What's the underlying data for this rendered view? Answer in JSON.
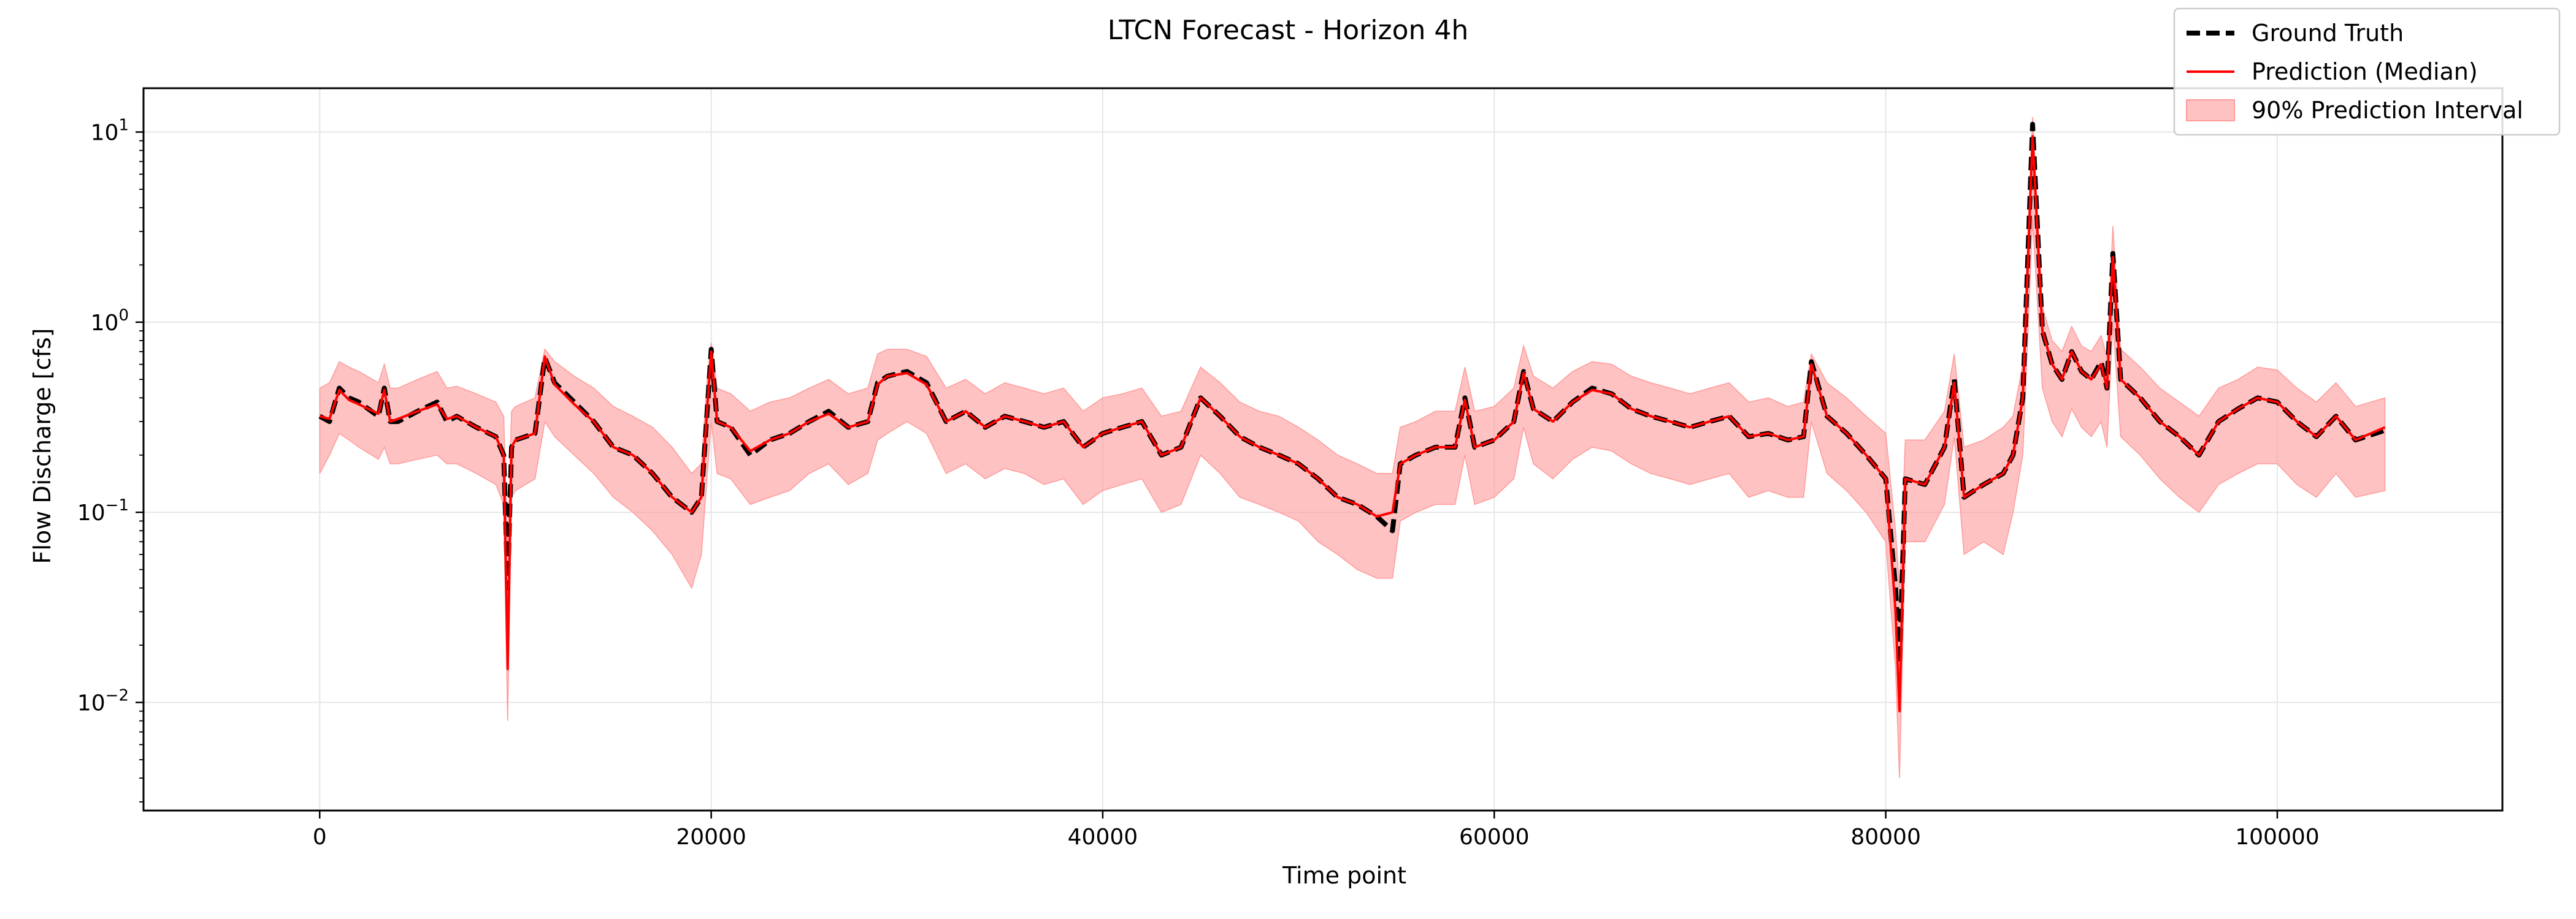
{
  "chart_data": {
    "type": "line",
    "title": "LTCN Forecast - Horizon 4h",
    "xlabel": "Time point",
    "ylabel": "Flow Discharge [cfs]",
    "xlim": [
      -9000,
      111500
    ],
    "ylim": [
      0.0027,
      17
    ],
    "yscale": "log",
    "grid": true,
    "legend_position": "top-right",
    "x_ticks": [
      {
        "value": 0,
        "label": "0"
      },
      {
        "value": 20000,
        "label": "20000"
      },
      {
        "value": 40000,
        "label": "40000"
      },
      {
        "value": 60000,
        "label": "60000"
      },
      {
        "value": 80000,
        "label": "80000"
      },
      {
        "value": 100000,
        "label": "100000"
      }
    ],
    "y_ticks": [
      {
        "value": 0.01,
        "base": "10",
        "exp": "−2"
      },
      {
        "value": 0.1,
        "base": "10",
        "exp": "−1"
      },
      {
        "value": 1,
        "base": "10",
        "exp": "0"
      },
      {
        "value": 10,
        "base": "10",
        "exp": "1"
      }
    ],
    "series": [
      {
        "name": "Ground Truth",
        "style": "dashed",
        "color": "#000000",
        "role": "truth"
      },
      {
        "name": "Prediction (Median)",
        "style": "solid",
        "color": "#ff0000",
        "role": "median"
      },
      {
        "name": "90% Prediction Interval",
        "style": "band",
        "color": "#ff9999",
        "role": "interval"
      }
    ],
    "x": [
      0,
      500,
      1000,
      1500,
      2000,
      3000,
      3300,
      3600,
      4000,
      5000,
      6000,
      6500,
      7000,
      8000,
      9000,
      9400,
      9600,
      9800,
      10000,
      11000,
      11500,
      12000,
      13000,
      14000,
      15000,
      16000,
      17000,
      18000,
      19000,
      19500,
      19800,
      20000,
      20300,
      21000,
      22000,
      23000,
      24000,
      25000,
      26000,
      27000,
      28000,
      28500,
      29000,
      30000,
      31000,
      32000,
      33000,
      34000,
      35000,
      36000,
      37000,
      38000,
      39000,
      40000,
      41000,
      42000,
      43000,
      44000,
      45000,
      46000,
      47000,
      48000,
      49000,
      50000,
      51000,
      52000,
      53000,
      54000,
      54800,
      55200,
      56000,
      57000,
      58000,
      58500,
      59000,
      60000,
      61000,
      61500,
      62000,
      63000,
      64000,
      65000,
      66000,
      67000,
      68000,
      69000,
      70000,
      71000,
      72000,
      73000,
      74000,
      75000,
      75800,
      76200,
      77000,
      78000,
      79000,
      80000,
      80500,
      80700,
      81000,
      82000,
      83000,
      83500,
      84000,
      85000,
      86000,
      86500,
      87000,
      87200,
      87500,
      88000,
      88500,
      89000,
      89500,
      90000,
      90500,
      91000,
      91300,
      91600,
      92000,
      93000,
      94000,
      95000,
      96000,
      97000,
      98000,
      99000,
      100000,
      101000,
      102000,
      103000,
      104000,
      105500
    ],
    "truth": [
      0.32,
      0.3,
      0.45,
      0.4,
      0.38,
      0.32,
      0.45,
      0.3,
      0.3,
      0.34,
      0.38,
      0.3,
      0.32,
      0.28,
      0.25,
      0.2,
      0.04,
      0.22,
      0.24,
      0.26,
      0.65,
      0.48,
      0.38,
      0.3,
      0.22,
      0.2,
      0.16,
      0.12,
      0.1,
      0.12,
      0.35,
      0.72,
      0.3,
      0.28,
      0.2,
      0.24,
      0.26,
      0.3,
      0.34,
      0.28,
      0.3,
      0.48,
      0.52,
      0.55,
      0.48,
      0.3,
      0.34,
      0.28,
      0.32,
      0.3,
      0.28,
      0.3,
      0.22,
      0.26,
      0.28,
      0.3,
      0.2,
      0.22,
      0.4,
      0.32,
      0.25,
      0.22,
      0.2,
      0.18,
      0.15,
      0.12,
      0.11,
      0.095,
      0.08,
      0.18,
      0.2,
      0.22,
      0.22,
      0.4,
      0.22,
      0.24,
      0.3,
      0.55,
      0.35,
      0.3,
      0.38,
      0.45,
      0.42,
      0.35,
      0.32,
      0.3,
      0.28,
      0.3,
      0.32,
      0.25,
      0.26,
      0.24,
      0.25,
      0.62,
      0.32,
      0.26,
      0.2,
      0.15,
      0.04,
      0.016,
      0.15,
      0.14,
      0.22,
      0.5,
      0.12,
      0.14,
      0.16,
      0.2,
      0.4,
      1.5,
      11,
      0.9,
      0.6,
      0.5,
      0.7,
      0.55,
      0.5,
      0.62,
      0.45,
      2.3,
      0.5,
      0.4,
      0.3,
      0.25,
      0.2,
      0.3,
      0.35,
      0.4,
      0.38,
      0.3,
      0.25,
      0.32,
      0.24,
      0.27
    ],
    "median": [
      0.32,
      0.31,
      0.44,
      0.39,
      0.37,
      0.33,
      0.44,
      0.3,
      0.31,
      0.34,
      0.37,
      0.31,
      0.32,
      0.28,
      0.25,
      0.2,
      0.015,
      0.22,
      0.24,
      0.26,
      0.66,
      0.47,
      0.37,
      0.3,
      0.22,
      0.2,
      0.16,
      0.12,
      0.1,
      0.12,
      0.36,
      0.7,
      0.3,
      0.28,
      0.21,
      0.24,
      0.26,
      0.3,
      0.33,
      0.28,
      0.3,
      0.47,
      0.52,
      0.54,
      0.47,
      0.3,
      0.34,
      0.28,
      0.32,
      0.3,
      0.28,
      0.3,
      0.22,
      0.26,
      0.28,
      0.3,
      0.2,
      0.22,
      0.4,
      0.32,
      0.25,
      0.22,
      0.2,
      0.18,
      0.15,
      0.12,
      0.11,
      0.095,
      0.1,
      0.18,
      0.2,
      0.22,
      0.22,
      0.39,
      0.22,
      0.24,
      0.3,
      0.54,
      0.35,
      0.3,
      0.38,
      0.44,
      0.42,
      0.35,
      0.32,
      0.3,
      0.28,
      0.3,
      0.32,
      0.25,
      0.26,
      0.24,
      0.25,
      0.6,
      0.32,
      0.26,
      0.2,
      0.15,
      0.03,
      0.009,
      0.15,
      0.14,
      0.22,
      0.48,
      0.12,
      0.14,
      0.16,
      0.2,
      0.4,
      1.4,
      9.5,
      0.9,
      0.6,
      0.5,
      0.7,
      0.55,
      0.5,
      0.6,
      0.45,
      2.2,
      0.5,
      0.4,
      0.3,
      0.25,
      0.2,
      0.3,
      0.35,
      0.4,
      0.38,
      0.3,
      0.25,
      0.32,
      0.24,
      0.28
    ],
    "lower": [
      0.16,
      0.2,
      0.26,
      0.24,
      0.22,
      0.19,
      0.22,
      0.18,
      0.18,
      0.19,
      0.2,
      0.18,
      0.18,
      0.16,
      0.14,
      0.11,
      0.008,
      0.12,
      0.13,
      0.15,
      0.3,
      0.25,
      0.2,
      0.16,
      0.12,
      0.1,
      0.08,
      0.06,
      0.04,
      0.06,
      0.16,
      0.3,
      0.16,
      0.15,
      0.11,
      0.12,
      0.13,
      0.16,
      0.18,
      0.14,
      0.16,
      0.24,
      0.26,
      0.3,
      0.26,
      0.16,
      0.18,
      0.15,
      0.17,
      0.16,
      0.14,
      0.15,
      0.11,
      0.13,
      0.14,
      0.15,
      0.1,
      0.11,
      0.2,
      0.16,
      0.12,
      0.11,
      0.1,
      0.09,
      0.07,
      0.06,
      0.05,
      0.045,
      0.045,
      0.09,
      0.1,
      0.11,
      0.11,
      0.2,
      0.11,
      0.12,
      0.15,
      0.28,
      0.18,
      0.15,
      0.19,
      0.22,
      0.21,
      0.18,
      0.16,
      0.15,
      0.14,
      0.15,
      0.16,
      0.12,
      0.13,
      0.12,
      0.12,
      0.3,
      0.16,
      0.13,
      0.1,
      0.07,
      0.015,
      0.004,
      0.07,
      0.07,
      0.11,
      0.25,
      0.06,
      0.07,
      0.06,
      0.1,
      0.2,
      0.6,
      3.5,
      0.45,
      0.3,
      0.25,
      0.35,
      0.28,
      0.25,
      0.3,
      0.22,
      1.0,
      0.25,
      0.2,
      0.15,
      0.12,
      0.1,
      0.14,
      0.16,
      0.18,
      0.18,
      0.14,
      0.12,
      0.16,
      0.12,
      0.13
    ],
    "upper": [
      0.45,
      0.48,
      0.62,
      0.58,
      0.55,
      0.48,
      0.6,
      0.45,
      0.45,
      0.5,
      0.55,
      0.45,
      0.46,
      0.42,
      0.38,
      0.32,
      0.06,
      0.34,
      0.36,
      0.4,
      0.72,
      0.62,
      0.52,
      0.45,
      0.36,
      0.32,
      0.28,
      0.22,
      0.16,
      0.18,
      0.5,
      0.78,
      0.45,
      0.42,
      0.34,
      0.38,
      0.4,
      0.45,
      0.5,
      0.42,
      0.45,
      0.68,
      0.72,
      0.72,
      0.66,
      0.45,
      0.5,
      0.42,
      0.48,
      0.45,
      0.42,
      0.45,
      0.34,
      0.4,
      0.42,
      0.45,
      0.32,
      0.34,
      0.58,
      0.48,
      0.38,
      0.34,
      0.32,
      0.28,
      0.24,
      0.2,
      0.18,
      0.16,
      0.16,
      0.28,
      0.3,
      0.34,
      0.34,
      0.58,
      0.34,
      0.36,
      0.45,
      0.75,
      0.52,
      0.45,
      0.55,
      0.62,
      0.6,
      0.52,
      0.48,
      0.45,
      0.42,
      0.45,
      0.48,
      0.38,
      0.4,
      0.36,
      0.38,
      0.68,
      0.48,
      0.4,
      0.32,
      0.26,
      0.08,
      0.04,
      0.24,
      0.24,
      0.34,
      0.68,
      0.22,
      0.24,
      0.28,
      0.32,
      0.6,
      2.0,
      12,
      1.2,
      0.8,
      0.7,
      0.95,
      0.75,
      0.7,
      0.85,
      0.65,
      3.2,
      0.72,
      0.58,
      0.45,
      0.38,
      0.32,
      0.45,
      0.5,
      0.58,
      0.56,
      0.45,
      0.38,
      0.48,
      0.36,
      0.4
    ]
  }
}
